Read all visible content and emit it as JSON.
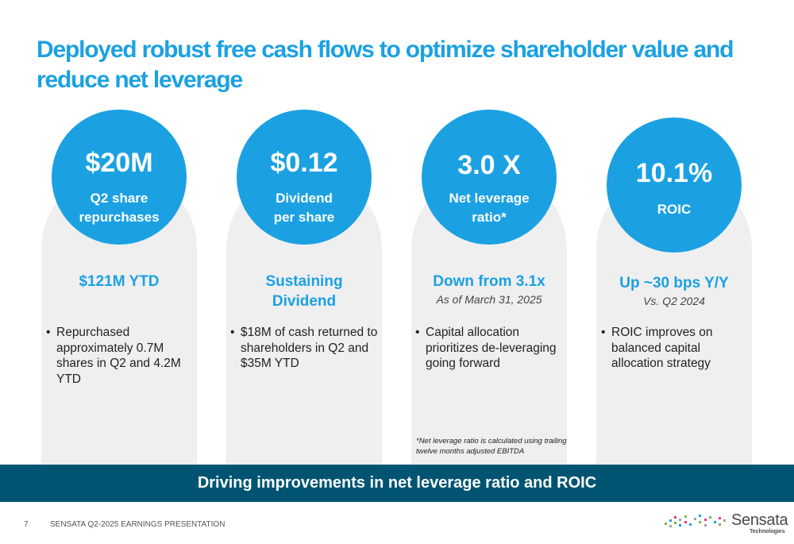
{
  "title": "Deployed robust free cash flows to optimize shareholder value and reduce net leverage",
  "cards": [
    {
      "value": "$20M",
      "sub_line1": "Q2 share",
      "sub_line2": "repurchases",
      "headline_line1": "$121M YTD",
      "headline_line2": "",
      "note": "",
      "bullet": "Repurchased approximately 0.7M shares in Q2 and 4.2M YTD"
    },
    {
      "value": "$0.12",
      "sub_line1": "Dividend",
      "sub_line2": "per share",
      "headline_line1": "Sustaining",
      "headline_line2": "Dividend",
      "note": "",
      "bullet": "$18M of cash returned to shareholders in Q2 and $35M YTD"
    },
    {
      "value": "3.0 X",
      "sub_line1": "Net leverage",
      "sub_line2": "ratio*",
      "headline_line1": "Down from 3.1x",
      "headline_line2": "",
      "note": "As of March 31, 2025",
      "bullet": "Capital allocation prioritizes de-leveraging going forward"
    },
    {
      "value": "10.1%",
      "sub_line1": "ROIC",
      "sub_line2": "",
      "headline_line1": "Up ~30 bps Y/Y",
      "headline_line2": "",
      "note": "Vs. Q2 2024",
      "bullet": "ROIC improves on balanced capital allocation strategy"
    }
  ],
  "footnote": "*Net leverage ratio is calculated using trailing twelve months adjusted EBITDA",
  "banner": "Driving improvements in net leverage ratio and ROIC",
  "footer": {
    "page_number": "7",
    "text": "SENSATA  Q2-2025 EARNINGS PRESENTATION"
  },
  "logo": {
    "name": "Sensata",
    "sub": "Technologies"
  },
  "colors": {
    "accent": "#1ba1e2",
    "banner": "#005472",
    "card": "#efeff0"
  }
}
